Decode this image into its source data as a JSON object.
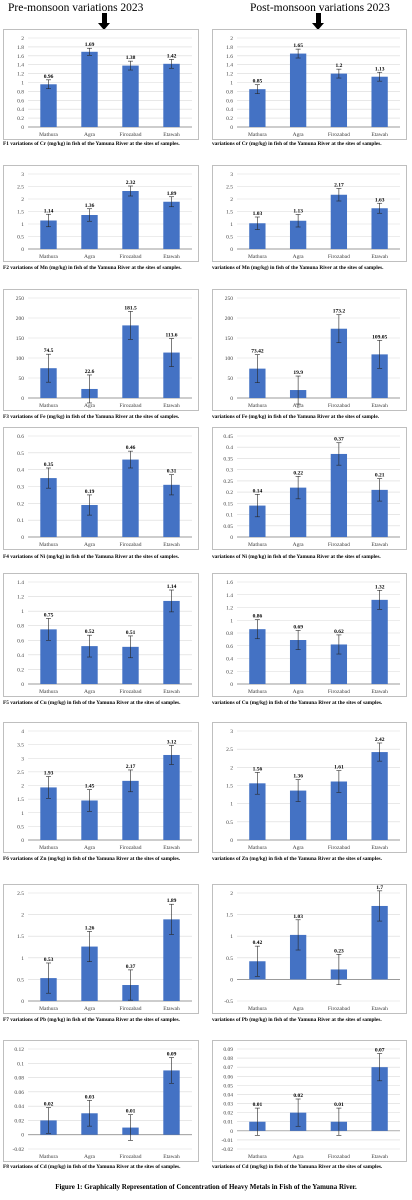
{
  "headers": {
    "left": "Pre-monsoon variations 2023",
    "right": "Post-monsoon variations 2023"
  },
  "figure_caption": "Figure 1: Graphically Representation of Concentration of Heavy Metals in Fish of the Yamuna River.",
  "style": {
    "bar_color": "#4472c4",
    "axis_color": "#808080",
    "grid_color": "#d9d9d9"
  },
  "chart_data": [
    {
      "type": "bar",
      "caption": "F1 variations of Cr (mg/kg) in fish of the Yamuna River at the sites of samples.",
      "categories": [
        "Mathura",
        "Agra",
        "Firozabad",
        "Etawah"
      ],
      "values": [
        0.96,
        1.69,
        1.38,
        1.42
      ],
      "labels": [
        "0.96",
        "1.69",
        "1.38",
        "1.42"
      ],
      "errors": [
        0.1,
        0.08,
        0.1,
        0.1
      ],
      "ylim": [
        0,
        2
      ],
      "yticks": [
        0,
        0.2,
        0.4,
        0.6,
        0.8,
        1,
        1.2,
        1.4,
        1.6,
        1.8,
        2
      ]
    },
    {
      "type": "bar",
      "caption": "variations of Cr (mg/kg) in fish of the Yamuna River at the sites of samples.",
      "categories": [
        "Mathura",
        "Agra",
        "Firozabad",
        "Etawah"
      ],
      "values": [
        0.85,
        1.65,
        1.2,
        1.13
      ],
      "labels": [
        "0.85",
        "1.65",
        "1.2",
        "1.13"
      ],
      "errors": [
        0.1,
        0.1,
        0.1,
        0.1
      ],
      "ylim": [
        0,
        2
      ],
      "yticks": [
        0,
        0.2,
        0.4,
        0.6,
        0.8,
        1,
        1.2,
        1.4,
        1.6,
        1.8,
        2
      ]
    },
    {
      "type": "bar",
      "caption": "F2 variations of Mn (mg/kg) in fish of the Yamuna River at the sites of samples.",
      "categories": [
        "Mathura",
        "Agra",
        "Firozabad",
        "Etawah"
      ],
      "values": [
        1.14,
        1.36,
        2.32,
        1.89
      ],
      "labels": [
        "1.14",
        "1.36",
        "2.32",
        "1.89"
      ],
      "errors": [
        0.25,
        0.25,
        0.2,
        0.2
      ],
      "ylim": [
        0,
        3
      ],
      "yticks": [
        0,
        0.5,
        1,
        1.5,
        2,
        2.5,
        3
      ]
    },
    {
      "type": "bar",
      "caption": "variations of Mn (mg/kg) in fish of the Yamuna River at the sites of samples.",
      "categories": [
        "Mathura",
        "Agra",
        "Firozabad",
        "Etawah"
      ],
      "values": [
        1.03,
        1.13,
        2.17,
        1.63
      ],
      "labels": [
        "1.03",
        "1.13",
        "2.17",
        "1.63"
      ],
      "errors": [
        0.25,
        0.25,
        0.25,
        0.2
      ],
      "ylim": [
        0,
        3
      ],
      "yticks": [
        0,
        0.5,
        1,
        1.5,
        2,
        2.5,
        3
      ]
    },
    {
      "type": "bar",
      "caption": "F3 variations of Fe (mg/kg) in fish of the Yamuna River at the sites of samples.",
      "categories": [
        "Mathura",
        "Agra",
        "Firozabad",
        "Etawah"
      ],
      "values": [
        74.5,
        22.6,
        181.5,
        113.6
      ],
      "labels": [
        "74.5",
        "22.6",
        "181.5",
        "113.6"
      ],
      "errors": [
        35,
        35,
        35,
        35
      ],
      "ylim": [
        0,
        250
      ],
      "yticks": [
        0,
        50,
        100,
        150,
        200,
        250
      ]
    },
    {
      "type": "bar",
      "caption": "variations of Fe (mg/kg) in fish of the Yamuna River at the sites of sample.",
      "categories": [
        "Mathura",
        "Agra",
        "Firozabad",
        "Etawah"
      ],
      "values": [
        73.42,
        19.9,
        173.2,
        109.05
      ],
      "labels": [
        "73.42",
        "19.9",
        "173.2",
        "109.05"
      ],
      "errors": [
        35,
        35,
        35,
        35
      ],
      "ylim": [
        0,
        250
      ],
      "yticks": [
        0,
        50,
        100,
        150,
        200,
        250
      ]
    },
    {
      "type": "bar",
      "caption": "F4 variations of Ni (mg/kg) in fish of the Yamuna River at the sites of samples.",
      "categories": [
        "Mathura",
        "Agra",
        "Firozabad",
        "Etawah"
      ],
      "values": [
        0.35,
        0.19,
        0.46,
        0.31
      ],
      "labels": [
        "0.35",
        "0.19",
        "0.46",
        "0.31"
      ],
      "errors": [
        0.06,
        0.06,
        0.05,
        0.06
      ],
      "ylim": [
        0,
        0.6
      ],
      "yticks": [
        0,
        0.1,
        0.2,
        0.3,
        0.4,
        0.5,
        0.6
      ]
    },
    {
      "type": "bar",
      "caption": "variations of Ni (mg/kg) in fish of the Yamuna River at the sites of samples.",
      "categories": [
        "Mathura",
        "Agra",
        "Firozabad",
        "Etawah"
      ],
      "values": [
        0.14,
        0.22,
        0.37,
        0.21
      ],
      "labels": [
        "0.14",
        "0.22",
        "0.37",
        "0.21"
      ],
      "errors": [
        0.05,
        0.05,
        0.05,
        0.05
      ],
      "ylim": [
        0,
        0.45
      ],
      "yticks": [
        0,
        0.05,
        0.1,
        0.15,
        0.2,
        0.25,
        0.3,
        0.35,
        0.4,
        0.45
      ]
    },
    {
      "type": "bar",
      "caption": "F5 variations of Cu (mg/kg) in fish of the Yamuna River at the sites of samples.",
      "categories": [
        "Mathura",
        "Agra",
        "Firozabad",
        "Etawah"
      ],
      "values": [
        0.75,
        0.52,
        0.51,
        1.14
      ],
      "labels": [
        "0.75",
        "0.52",
        "0.51",
        "1.14"
      ],
      "errors": [
        0.15,
        0.15,
        0.15,
        0.15
      ],
      "ylim": [
        0,
        1.4
      ],
      "yticks": [
        0,
        0.2,
        0.4,
        0.6,
        0.8,
        1,
        1.2,
        1.4
      ]
    },
    {
      "type": "bar",
      "caption": "variations of Cu (mg/kg) in fish of the Yamuna River at the sites of samples.",
      "categories": [
        "Mathura",
        "Agra",
        "Firozabad",
        "Etawah"
      ],
      "values": [
        0.86,
        0.69,
        0.62,
        1.32
      ],
      "labels": [
        "0.86",
        "0.69",
        "0.62",
        "1.32"
      ],
      "errors": [
        0.15,
        0.15,
        0.15,
        0.15
      ],
      "ylim": [
        0,
        1.6
      ],
      "yticks": [
        0,
        0.2,
        0.4,
        0.6,
        0.8,
        1,
        1.2,
        1.4,
        1.6
      ]
    },
    {
      "type": "bar",
      "caption": "F6 variations of Zn (mg/kg) in fish of the Yamuna River at the sites of samples.",
      "categories": [
        "Mathura",
        "Agra",
        "Firozabad",
        "Etawah"
      ],
      "values": [
        1.93,
        1.45,
        2.17,
        3.12
      ],
      "labels": [
        "1.93",
        "1.45",
        "2.17",
        "3.12"
      ],
      "errors": [
        0.4,
        0.4,
        0.4,
        0.35
      ],
      "ylim": [
        0,
        4
      ],
      "yticks": [
        0,
        0.5,
        1,
        1.5,
        2,
        2.5,
        3,
        3.5,
        4
      ]
    },
    {
      "type": "bar",
      "caption": "variations of Zn (mg/kg) in fish of the Yamuna River at the sites of samples.",
      "categories": [
        "Mathura",
        "Agra",
        "Firozabad",
        "Etawah"
      ],
      "values": [
        1.56,
        1.36,
        1.61,
        2.42
      ],
      "labels": [
        "1.56",
        "1.36",
        "1.61",
        "2.42"
      ],
      "errors": [
        0.3,
        0.3,
        0.3,
        0.25
      ],
      "ylim": [
        0,
        3
      ],
      "yticks": [
        0,
        0.5,
        1,
        1.5,
        2,
        2.5,
        3
      ]
    },
    {
      "type": "bar",
      "caption": "F7 variations of Pb (mg/kg) in fish of the Yamuna River at the sites of samples.",
      "categories": [
        "Mathura",
        "Agra",
        "Firozabad",
        "Etawah"
      ],
      "values": [
        0.53,
        1.26,
        0.37,
        1.89
      ],
      "labels": [
        "0.53",
        "1.26",
        "0.37",
        "1.89"
      ],
      "errors": [
        0.35,
        0.35,
        0.35,
        0.35
      ],
      "ylim": [
        0,
        2.5
      ],
      "yticks": [
        0,
        0.5,
        1,
        1.5,
        2,
        2.5
      ]
    },
    {
      "type": "bar",
      "caption": "variations of Pb (mg/kg) in fish of the Yamuna River at the sites of samples.",
      "categories": [
        "Mathura",
        "Agra",
        "Firozabad",
        "Etawah"
      ],
      "values": [
        0.42,
        1.03,
        0.23,
        1.7
      ],
      "labels": [
        "0.42",
        "1.03",
        "0.23",
        "1.7"
      ],
      "errors": [
        0.35,
        0.35,
        0.35,
        0.35
      ],
      "ylim": [
        -0.5,
        2
      ],
      "yticks": [
        -0.5,
        0,
        0.5,
        1,
        1.5,
        2
      ]
    },
    {
      "type": "bar",
      "caption": "F8 variations of Cd (mg/kg) in fish of the Yamuna River at the sites of samples.",
      "categories": [
        "Mathura",
        "Agra",
        "Firozabad",
        "Etawah"
      ],
      "values": [
        0.02,
        0.03,
        0.01,
        0.09
      ],
      "labels": [
        "0.02",
        "0.03",
        "0.01",
        "0.09"
      ],
      "errors": [
        0.018,
        0.018,
        0.018,
        0.018
      ],
      "ylim": [
        -0.02,
        0.12
      ],
      "yticks": [
        -0.02,
        0,
        0.02,
        0.04,
        0.06,
        0.08,
        0.1,
        0.12
      ]
    },
    {
      "type": "bar",
      "caption": "variations of Cd (mg/kg) in fish of the Yamuna River at the sites of samples.",
      "categories": [
        "Mathura",
        "Agra",
        "Firozabad",
        "Etawah"
      ],
      "values": [
        0.01,
        0.02,
        0.01,
        0.07
      ],
      "labels": [
        "0.01",
        "0.02",
        "0.01",
        "0.07"
      ],
      "errors": [
        0.015,
        0.015,
        0.015,
        0.015
      ],
      "ylim": [
        -0.02,
        0.09
      ],
      "yticks": [
        -0.02,
        -0.01,
        0,
        0.01,
        0.02,
        0.03,
        0.04,
        0.05,
        0.06,
        0.07,
        0.08,
        0.09
      ]
    }
  ]
}
